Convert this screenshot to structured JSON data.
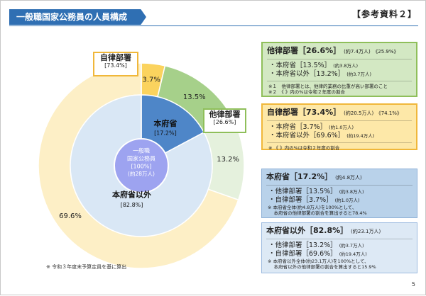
{
  "header": {
    "title": "一般職国家公務員の人員構成",
    "ref": "【参考資料２】",
    "page": "5"
  },
  "note_left": "※ 令和３年度末予算定員を基に算出",
  "chart_data": {
    "type": "pie",
    "title": "一般職国家公務員の人員構成",
    "center": {
      "label1": "一般職",
      "label2": "国家公務員",
      "pct": "[100%]",
      "count": "(約28万人)"
    },
    "inner_ring": [
      {
        "name": "本府省",
        "value": 17.2,
        "label": "本府省",
        "pct_label": "[17.2%]",
        "color": "#4e86c8"
      },
      {
        "name": "本府省以外",
        "value": 82.8,
        "label": "本府省以外",
        "pct_label": "[82.8%]",
        "color": "#d9e7f5"
      }
    ],
    "outer_ring": [
      {
        "name": "自律部署（本府省）",
        "value": 3.7,
        "label": "3.7%",
        "color": "#fbd35e"
      },
      {
        "name": "他律部署（本府省）",
        "value": 13.5,
        "label": "13.5%",
        "color": "#a6d08a"
      },
      {
        "name": "他律部署（本府省以外）",
        "value": 13.2,
        "label": "13.2%",
        "color": "#e5f1dd"
      },
      {
        "name": "自律部署（本府省以外）",
        "value": 69.6,
        "label": "69.6%",
        "color": "#fdefc6"
      }
    ],
    "callouts": {
      "own": {
        "title": "自律部署",
        "pct": "[73.4%]"
      },
      "other": {
        "title": "他律部署",
        "pct": "[26.6%]"
      }
    },
    "colors": {
      "outer_stroke": "#ffffff",
      "center_circle": "#9da3f0",
      "center_stroke": "#ffffff"
    }
  },
  "panels": {
    "green": {
      "head": "他律部署［26.6%］",
      "head_small": "(約7.4万人)　《25.9%》",
      "rows": [
        {
          "t": "・本府省［13.5%］",
          "s": "(約3.8万人)"
        },
        {
          "t": "・本府省以外［13.2%］",
          "s": "(約3.7万人)"
        }
      ],
      "notes": [
        "※１　他律部署とは、他律的業務の比重が高い部署のこと",
        "※２　《 》内の%は令和２年度の割合"
      ]
    },
    "yellow": {
      "head": "自律部署［73.4%］",
      "head_small": "(約20.5万人)　《74.1%》",
      "rows": [
        {
          "t": "・本府省［3.7%］",
          "s": "(約1.0万人)"
        },
        {
          "t": "・本府省以外［69.6%］",
          "s": "(約19.4万人)"
        }
      ],
      "notes": [
        "※ 《 》内の%は令和２年度の割合"
      ]
    },
    "blue": {
      "head": "本府省［17.2%］",
      "head_small": "(約4.8万人)",
      "rows": [
        {
          "t": "・他律部署［13.5%］",
          "s": "(約3.8万人)"
        },
        {
          "t": "・自律部署［3.7%］",
          "s": "(約1.0万人)"
        }
      ],
      "notes": [
        "※ 本府省全体(約4.8万人)を100%として、",
        "　 本府省の他律部署の割合を算出すると78.4%"
      ]
    },
    "lblue": {
      "head": "本府省以外［82.8%］",
      "head_small": "(約23.1万人)",
      "rows": [
        {
          "t": "・他律部署［13.2%］",
          "s": "(約3.7万人)"
        },
        {
          "t": "・自律部署［69.6%］",
          "s": "(約19.4万人)"
        }
      ],
      "notes": [
        "※ 本府省以外全体(約23.1万人)を100%として、",
        "　 本府省以外の他律部署の割合を算出すると15.9%"
      ]
    }
  }
}
